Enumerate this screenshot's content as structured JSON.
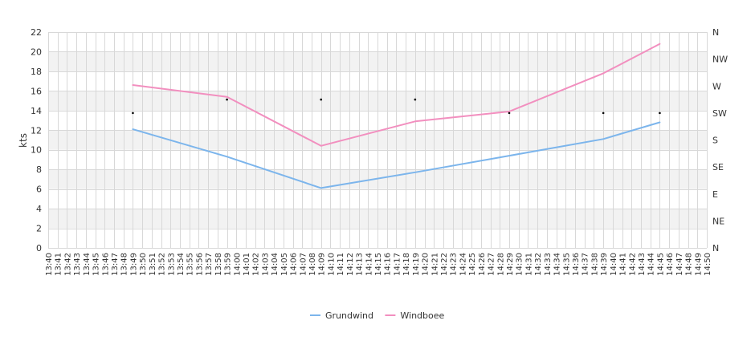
{
  "chart_data": {
    "type": "line",
    "ylabel": "kts",
    "ylim": [
      0,
      22
    ],
    "yticks": [
      0,
      2,
      4,
      6,
      8,
      10,
      12,
      14,
      16,
      18,
      20,
      22
    ],
    "xrange": [
      "13:40",
      "14:50"
    ],
    "x_tick_step_minutes": 1,
    "direction_axis": {
      "labels": [
        "N",
        "NE",
        "E",
        "SE",
        "S",
        "SW",
        "W",
        "NW",
        "N"
      ],
      "range_degrees": [
        0,
        360
      ]
    },
    "grid": true,
    "series": [
      {
        "name": "Grundwind",
        "color": "#7cb5ec",
        "points": [
          {
            "x": "13:49",
            "y": 12.1
          },
          {
            "x": "13:59",
            "y": 9.3
          },
          {
            "x": "14:09",
            "y": 6.1
          },
          {
            "x": "14:19",
            "y": 7.7
          },
          {
            "x": "14:29",
            "y": 9.4
          },
          {
            "x": "14:39",
            "y": 11.1
          },
          {
            "x": "14:45",
            "y": 12.8
          }
        ]
      },
      {
        "name": "Windboee",
        "color": "#f28fbf",
        "points": [
          {
            "x": "13:49",
            "y": 16.6
          },
          {
            "x": "13:59",
            "y": 15.4
          },
          {
            "x": "14:09",
            "y": 10.4
          },
          {
            "x": "14:19",
            "y": 12.9
          },
          {
            "x": "14:29",
            "y": 13.9
          },
          {
            "x": "14:39",
            "y": 17.8
          },
          {
            "x": "14:45",
            "y": 20.8
          }
        ]
      }
    ],
    "direction_points": [
      {
        "x": "13:49",
        "deg": 225
      },
      {
        "x": "13:59",
        "deg": 247.5
      },
      {
        "x": "14:09",
        "deg": 247.5
      },
      {
        "x": "14:19",
        "deg": 247.5
      },
      {
        "x": "14:29",
        "deg": 225
      },
      {
        "x": "14:39",
        "deg": 225
      },
      {
        "x": "14:45",
        "deg": 225
      }
    ],
    "legend": {
      "position": "bottom-center"
    }
  }
}
